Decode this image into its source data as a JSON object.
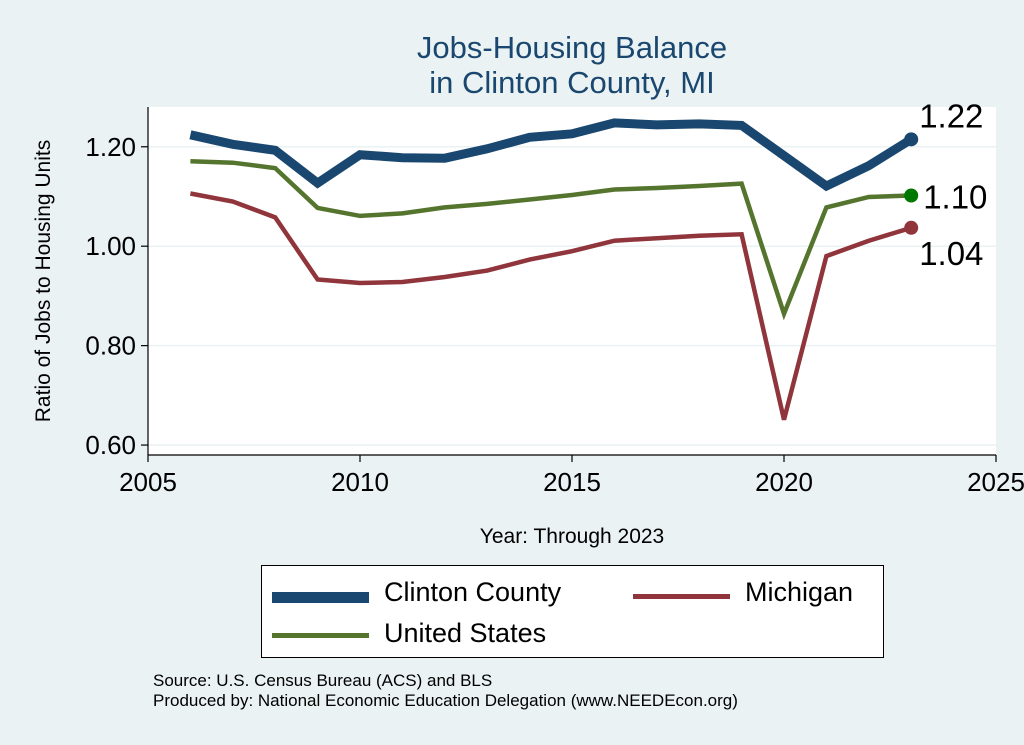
{
  "chart_data": {
    "type": "line",
    "title": [
      "Jobs-Housing Balance",
      "in Clinton County, MI"
    ],
    "xlabel": "Year: Through 2023",
    "ylabel": "Ratio of Jobs to Housing Units",
    "xlim": [
      2005,
      2025
    ],
    "ylim": [
      0.58,
      1.28
    ],
    "xticks": [
      2005,
      2010,
      2015,
      2020,
      2025
    ],
    "yticks": [
      0.6,
      0.8,
      1.0,
      1.2
    ],
    "ytick_labels": [
      "0.60",
      "0.80",
      "1.00",
      "1.20"
    ],
    "x": [
      2006,
      2007,
      2008,
      2009,
      2010,
      2011,
      2012,
      2013,
      2014,
      2015,
      2016,
      2017,
      2018,
      2019,
      2020,
      2021,
      2022,
      2023
    ],
    "series": [
      {
        "name": "Clinton County",
        "color": "#1a476f",
        "values": [
          1.224,
          1.205,
          1.193,
          1.127,
          1.184,
          1.178,
          1.177,
          1.196,
          1.219,
          1.226,
          1.248,
          1.244,
          1.246,
          1.243,
          1.182,
          1.121,
          1.162,
          1.215
        ],
        "end_label": "1.22"
      },
      {
        "name": "United States",
        "color": "#55752f",
        "values": [
          1.171,
          1.168,
          1.157,
          1.077,
          1.061,
          1.066,
          1.078,
          1.085,
          1.094,
          1.103,
          1.114,
          1.117,
          1.121,
          1.126,
          0.864,
          1.078,
          1.099,
          1.102
        ],
        "end_label": "1.10"
      },
      {
        "name": "Michigan",
        "color": "#90353b",
        "values": [
          1.106,
          1.09,
          1.058,
          0.933,
          0.926,
          0.928,
          0.938,
          0.951,
          0.973,
          0.99,
          1.011,
          1.016,
          1.021,
          1.024,
          0.651,
          0.98,
          1.011,
          1.037
        ],
        "end_label": "1.04"
      }
    ],
    "end_marker_colors": [
      "#1a476f",
      "#007700",
      "#90353b"
    ],
    "grid": true,
    "legend_position": "bottom"
  },
  "legend": {
    "items": [
      "Clinton County",
      "Michigan",
      "United States"
    ]
  },
  "footnotes": {
    "source": "Source: U.S. Census Bureau (ACS) and BLS",
    "produced_by": "Produced by: National Economic Education Delegation (www.NEEDEcon.org)"
  },
  "colors": {
    "background": "#eaf2f3",
    "plot_background": "#ffffff",
    "grid": "#eaf2f3",
    "title": "#1a476f"
  }
}
